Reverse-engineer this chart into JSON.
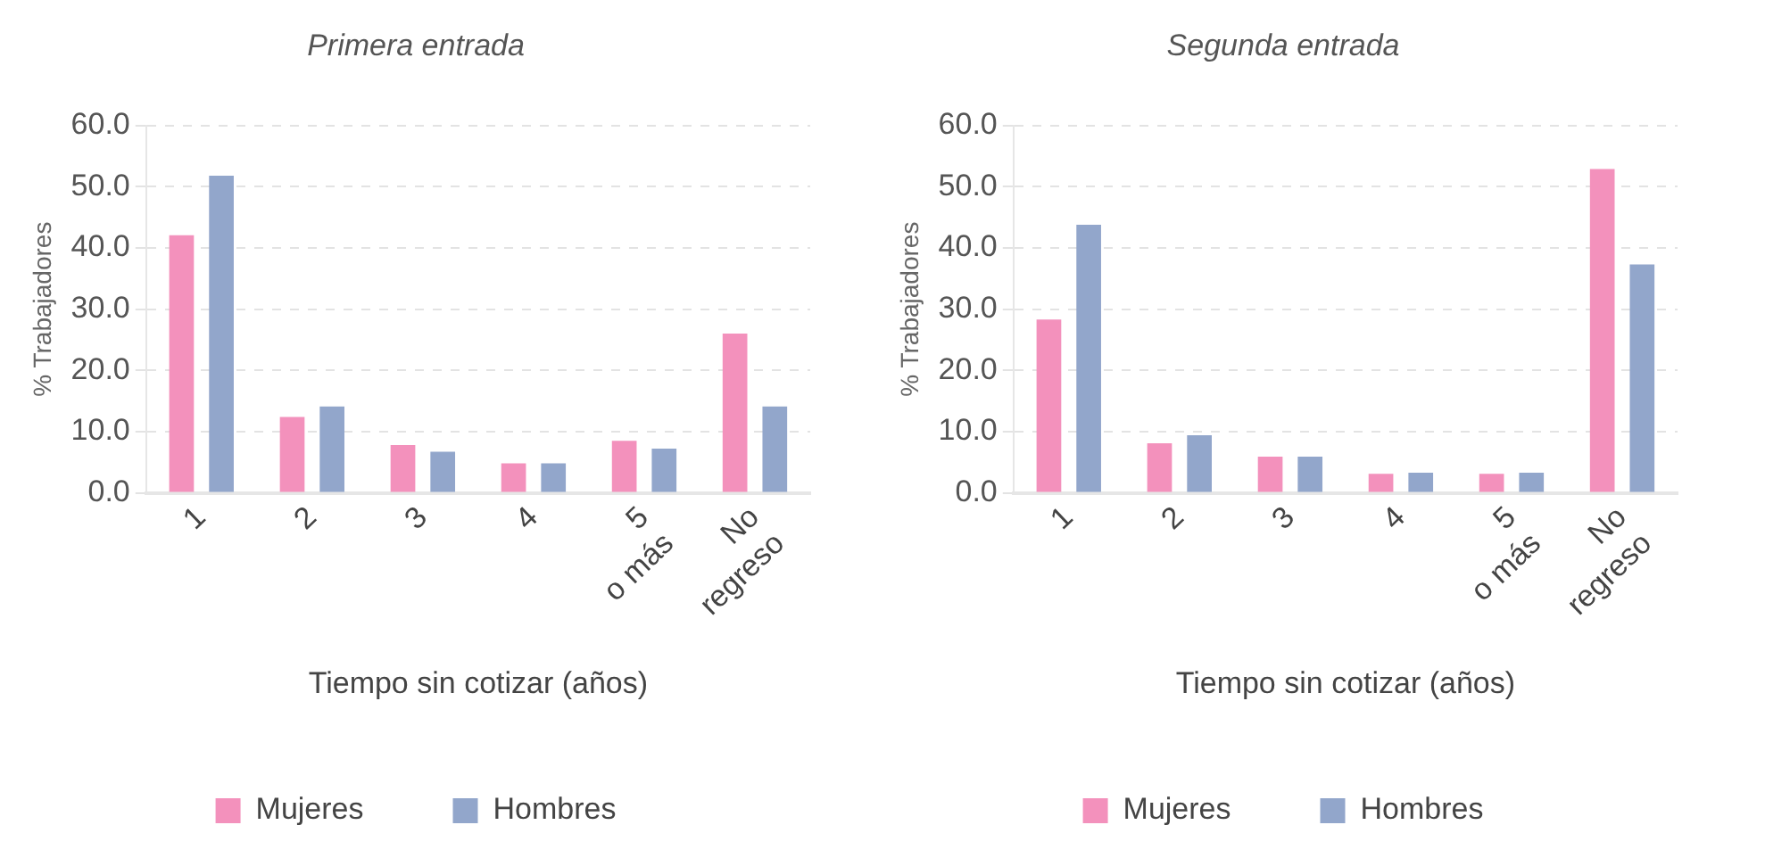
{
  "chart_data": [
    {
      "type": "bar",
      "title": "Primera entrada",
      "xlabel": "Tiempo sin cotizar (años)",
      "ylabel": "% Trabajadores",
      "categories": [
        "1",
        "2",
        "3",
        "4",
        "5 o más",
        "No regreso"
      ],
      "series": [
        {
          "name": "Mujeres",
          "color": "#f391bc",
          "values": [
            42.1,
            12.4,
            7.8,
            4.8,
            8.5,
            26.0
          ]
        },
        {
          "name": "Hombres",
          "color": "#92a6cb",
          "values": [
            51.8,
            14.1,
            6.7,
            4.8,
            7.2,
            14.1
          ]
        }
      ],
      "ylim": [
        0,
        60
      ],
      "yticks": [
        {
          "value": 0,
          "label": "0.0"
        },
        {
          "value": 10,
          "label": "10.0"
        },
        {
          "value": 20,
          "label": "20.0"
        },
        {
          "value": 30,
          "label": "30.0"
        },
        {
          "value": 40,
          "label": "40.0"
        },
        {
          "value": 50,
          "label": "50.0"
        },
        {
          "value": 60,
          "label": "60.0"
        }
      ],
      "grid": "y",
      "legend": "bottom"
    },
    {
      "type": "bar",
      "title": "Segunda entrada",
      "xlabel": "Tiempo sin cotizar (años)",
      "ylabel": "% Trabajadores",
      "categories": [
        "1",
        "2",
        "3",
        "4",
        "5 o más",
        "No regreso"
      ],
      "series": [
        {
          "name": "Mujeres",
          "color": "#f391bc",
          "values": [
            28.3,
            8.1,
            5.9,
            3.1,
            3.1,
            52.9
          ]
        },
        {
          "name": "Hombres",
          "color": "#92a6cb",
          "values": [
            43.8,
            9.4,
            5.9,
            3.3,
            3.3,
            37.3
          ]
        }
      ],
      "ylim": [
        0,
        60
      ],
      "yticks": [
        {
          "value": 0,
          "label": "0.0"
        },
        {
          "value": 10,
          "label": "10.0"
        },
        {
          "value": 20,
          "label": "20.0"
        },
        {
          "value": 30,
          "label": "30.0"
        },
        {
          "value": 40,
          "label": "40.0"
        },
        {
          "value": 50,
          "label": "50.0"
        },
        {
          "value": 60,
          "label": "60.0"
        }
      ],
      "grid": "y",
      "legend": "bottom"
    }
  ]
}
